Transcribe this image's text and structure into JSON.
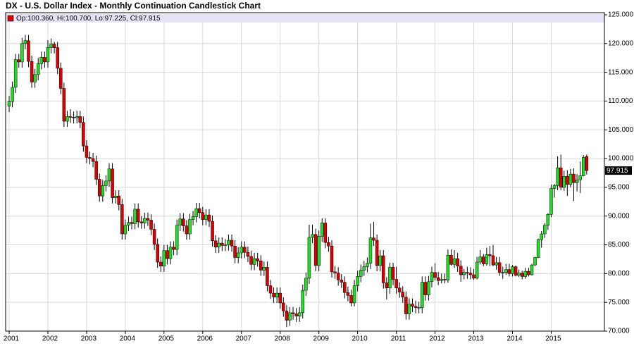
{
  "chart_data": {
    "type": "candlestick",
    "title": "DX - U.S. Dollar Index - Monthly Continuation Candlestick Chart",
    "legend_text": "Op:100.360, Hi:100.700, Lo:97.225, Cl:97.915",
    "categories": [
      "2001",
      null,
      null,
      null,
      null,
      null,
      null,
      null,
      null,
      null,
      null,
      null,
      "2002",
      null,
      null,
      null,
      null,
      null,
      null,
      null,
      null,
      null,
      null,
      null,
      "2003",
      null,
      null,
      null,
      null,
      null,
      null,
      null,
      null,
      null,
      null,
      null,
      "2004",
      null,
      null,
      null,
      null,
      null,
      null,
      null,
      null,
      null,
      null,
      null,
      "2005",
      null,
      null,
      null,
      null,
      null,
      null,
      null,
      null,
      null,
      null,
      null,
      "2006",
      null,
      null,
      null,
      null,
      null,
      null,
      null,
      null,
      null,
      null,
      null,
      "2007",
      null,
      null,
      null,
      null,
      null,
      null,
      null,
      null,
      null,
      null,
      null,
      "2008",
      null,
      null,
      null,
      null,
      null,
      null,
      null,
      null,
      null,
      null,
      null,
      "2009",
      null,
      null,
      null,
      null,
      null,
      null,
      null,
      null,
      null,
      null,
      null,
      "2010",
      null,
      null,
      null,
      null,
      null,
      null,
      null,
      null,
      null,
      null,
      null,
      "2011",
      null,
      null,
      null,
      null,
      null,
      null,
      null,
      null,
      null,
      null,
      null,
      "2012",
      null,
      null,
      null,
      null,
      null,
      null,
      null,
      null,
      null,
      null,
      null,
      "2013",
      null,
      null,
      null,
      null,
      null,
      null,
      null,
      null,
      null,
      null,
      null,
      "2014",
      null,
      null,
      null,
      null,
      null,
      null,
      null,
      null,
      null,
      null,
      null,
      "2015",
      null,
      null,
      null,
      null,
      null,
      null,
      null,
      null,
      null,
      null,
      null
    ],
    "open": [
      109.1,
      109.9,
      112.4,
      117.2,
      116.8,
      120.0,
      120.5,
      116.9,
      113.3,
      114.6,
      116.5,
      117.6,
      116.8,
      119.3,
      119.9,
      119.3,
      115.7,
      112.2,
      106.5,
      107.3,
      107.2,
      107.1,
      107.3,
      106.3,
      102.2,
      100.2,
      100.0,
      99.5,
      96.4,
      93.5,
      95.3,
      96.1,
      98.2,
      93.2,
      93.5,
      92.0,
      86.9,
      88.4,
      88.9,
      88.7,
      91.2,
      89.0,
      88.8,
      89.6,
      89.3,
      87.7,
      85.1,
      82.0,
      81.3,
      84.0,
      82.6,
      84.6,
      84.2,
      88.4,
      89.5,
      88.3,
      86.9,
      89.4,
      89.9,
      91.3,
      90.6,
      89.4,
      90.2,
      89.1,
      85.7,
      84.6,
      85.3,
      84.9,
      85.0,
      85.8,
      84.8,
      82.8,
      83.6,
      84.6,
      83.7,
      83.0,
      81.6,
      82.6,
      82.2,
      80.6,
      81.1,
      77.9,
      76.6,
      75.9,
      76.6,
      74.9,
      73.5,
      71.9,
      73.2,
      73.0,
      72.6,
      73.2,
      77.1,
      79.2,
      86.3,
      86.8,
      81.4,
      86.5,
      88.8,
      85.4,
      84.8,
      80.3,
      80.1,
      78.9,
      78.5,
      76.7,
      76.2,
      74.9,
      77.9,
      79.5,
      80.6,
      81.2,
      81.8,
      86.2,
      85.8,
      81.4,
      83.1,
      78.4,
      77.5,
      81.1,
      79.0,
      77.5,
      76.8,
      75.9,
      73.0,
      74.7,
      74.3,
      74.1,
      74.1,
      78.5,
      76.3,
      78.6,
      80.2,
      79.3,
      78.8,
      79.0,
      78.9,
      83.2,
      81.6,
      82.6,
      81.3,
      79.8,
      80.2,
      80.1,
      79.8,
      79.2,
      82.0,
      82.9,
      81.7,
      83.3,
      83.1,
      81.5,
      81.9,
      80.2,
      80.2,
      80.7,
      80.0,
      81.2,
      79.7,
      80.1,
      79.5,
      80.4,
      79.8,
      81.5,
      82.8,
      85.9,
      86.9,
      88.4,
      90.3,
      94.8,
      95.3,
      98.4,
      95.0,
      96.9,
      95.5,
      97.3,
      95.8,
      96.3,
      97.0,
      100.36
    ],
    "high": [
      110.9,
      113.4,
      118.2,
      118.2,
      121.0,
      121.5,
      121.5,
      117.9,
      115.6,
      117.5,
      118.6,
      118.6,
      120.6,
      120.9,
      120.3,
      120.3,
      116.7,
      113.2,
      108.3,
      108.6,
      108.2,
      108.3,
      108.3,
      107.3,
      103.2,
      101.2,
      101.0,
      100.5,
      97.4,
      96.3,
      97.1,
      99.2,
      99.2,
      94.5,
      94.5,
      93.0,
      89.4,
      89.9,
      89.9,
      92.2,
      92.2,
      90.0,
      90.6,
      90.6,
      90.3,
      88.7,
      86.1,
      83.0,
      85.0,
      85.0,
      85.6,
      85.6,
      89.4,
      90.5,
      90.5,
      89.3,
      90.4,
      90.9,
      92.3,
      92.3,
      91.6,
      91.2,
      91.2,
      90.1,
      86.7,
      86.3,
      86.3,
      86.0,
      86.8,
      86.8,
      85.8,
      84.6,
      85.6,
      85.6,
      84.7,
      84.0,
      83.6,
      83.6,
      83.2,
      82.1,
      82.1,
      78.9,
      77.6,
      77.6,
      77.6,
      75.9,
      74.5,
      74.2,
      74.2,
      74.0,
      74.2,
      78.1,
      80.2,
      88.5,
      88.5,
      87.8,
      87.5,
      89.6,
      89.6,
      86.4,
      85.8,
      81.3,
      81.1,
      79.9,
      79.5,
      77.7,
      77.2,
      78.9,
      80.5,
      81.6,
      82.2,
      82.8,
      88.7,
      89.0,
      86.8,
      84.1,
      84.1,
      79.4,
      81.9,
      81.9,
      81.2,
      78.5,
      77.8,
      76.9,
      75.7,
      75.7,
      75.3,
      75.1,
      79.5,
      79.5,
      79.6,
      81.2,
      81.8,
      80.3,
      80.0,
      80.0,
      84.2,
      84.2,
      84.1,
      83.6,
      82.3,
      80.8,
      81.2,
      81.1,
      80.8,
      82.9,
      84.1,
      83.4,
      84.5,
      84.8,
      85.0,
      82.9,
      82.9,
      81.2,
      81.7,
      81.7,
      81.5,
      81.4,
      80.7,
      80.5,
      81.0,
      81.0,
      81.7,
      82.9,
      86.1,
      87.4,
      88.8,
      90.5,
      95.5,
      95.6,
      100.4,
      100.7,
      97.9,
      98.0,
      98.2,
      98.3,
      97.3,
      99.5,
      100.6,
      100.7
    ],
    "low": [
      108.1,
      108.9,
      111.4,
      115.8,
      115.8,
      119.0,
      115.9,
      112.3,
      112.3,
      113.6,
      115.5,
      115.8,
      115.8,
      118.3,
      118.3,
      114.7,
      111.2,
      105.5,
      105.5,
      106.2,
      106.1,
      106.1,
      105.3,
      101.2,
      99.2,
      99.0,
      98.5,
      95.4,
      92.5,
      92.5,
      94.3,
      95.1,
      92.2,
      92.2,
      91.0,
      85.9,
      85.9,
      87.4,
      87.7,
      87.7,
      88.0,
      87.8,
      87.8,
      88.3,
      86.7,
      84.1,
      81.0,
      80.3,
      80.3,
      81.6,
      81.6,
      83.2,
      83.2,
      87.4,
      87.3,
      85.9,
      85.9,
      88.4,
      88.9,
      89.6,
      88.4,
      88.4,
      88.1,
      84.7,
      83.6,
      83.6,
      83.9,
      83.9,
      84.0,
      83.8,
      81.8,
      81.8,
      82.6,
      82.7,
      82.0,
      80.6,
      80.6,
      81.2,
      79.6,
      79.6,
      76.9,
      75.6,
      74.9,
      74.9,
      73.9,
      72.5,
      70.7,
      70.9,
      72.0,
      71.6,
      71.6,
      72.2,
      76.1,
      78.2,
      85.3,
      80.4,
      80.4,
      85.5,
      84.4,
      83.8,
      79.3,
      79.1,
      77.9,
      77.5,
      75.7,
      75.2,
      74.3,
      74.3,
      76.9,
      78.5,
      79.6,
      80.2,
      80.8,
      84.8,
      80.4,
      80.4,
      77.4,
      75.5,
      76.5,
      78.0,
      76.5,
      75.8,
      74.9,
      72.0,
      72.0,
      73.3,
      73.1,
      73.1,
      73.1,
      75.3,
      75.3,
      77.6,
      78.8,
      78.0,
      78.3,
      78.3,
      78.4,
      81.4,
      81.0,
      80.3,
      78.6,
      79.0,
      79.1,
      79.0,
      78.9,
      79.0,
      81.6,
      81.3,
      81.4,
      81.3,
      81.3,
      80.7,
      79.6,
      79.1,
      79.8,
      79.5,
      79.5,
      79.5,
      79.4,
      79.0,
      79.1,
      79.5,
      79.7,
      81.3,
      82.7,
      84.5,
      86.2,
      87.6,
      89.8,
      93.2,
      94.5,
      94.5,
      94.4,
      93.5,
      95.0,
      92.6,
      94.3,
      94.0,
      96.9,
      97.225
    ],
    "close": [
      109.9,
      112.4,
      117.2,
      116.8,
      120.0,
      120.5,
      116.9,
      113.3,
      114.6,
      116.5,
      117.6,
      116.8,
      119.3,
      119.9,
      119.3,
      115.7,
      112.2,
      106.5,
      107.3,
      107.2,
      107.1,
      107.3,
      106.3,
      102.2,
      100.2,
      100.0,
      99.5,
      96.4,
      93.5,
      95.3,
      96.1,
      98.2,
      93.2,
      93.5,
      92.0,
      86.9,
      88.4,
      88.9,
      88.7,
      91.2,
      89.0,
      88.8,
      89.6,
      89.3,
      87.7,
      85.1,
      82.0,
      81.3,
      84.0,
      82.6,
      84.6,
      84.2,
      88.4,
      89.5,
      88.3,
      86.9,
      89.4,
      89.9,
      91.3,
      90.6,
      89.4,
      90.2,
      89.1,
      85.7,
      84.6,
      85.3,
      84.9,
      85.0,
      85.8,
      84.8,
      82.8,
      83.6,
      84.6,
      83.7,
      83.0,
      81.6,
      82.6,
      82.2,
      80.6,
      81.1,
      77.9,
      76.6,
      75.9,
      76.6,
      74.9,
      73.5,
      71.9,
      73.2,
      73.0,
      72.6,
      73.2,
      77.1,
      79.2,
      86.3,
      86.8,
      81.4,
      86.5,
      88.8,
      85.4,
      84.8,
      80.3,
      80.1,
      78.9,
      78.5,
      76.7,
      76.2,
      74.9,
      77.9,
      79.5,
      80.6,
      81.2,
      81.8,
      86.2,
      85.8,
      81.4,
      83.1,
      78.4,
      77.5,
      81.1,
      79.0,
      77.5,
      76.8,
      75.9,
      73.0,
      74.7,
      74.3,
      74.1,
      74.1,
      78.5,
      76.3,
      78.6,
      80.2,
      79.3,
      78.8,
      79.0,
      78.9,
      83.2,
      81.6,
      82.6,
      81.3,
      79.8,
      80.2,
      80.1,
      79.8,
      79.2,
      82.0,
      82.9,
      81.7,
      83.3,
      83.1,
      81.5,
      81.9,
      80.2,
      80.2,
      80.7,
      80.0,
      81.2,
      79.7,
      80.1,
      79.5,
      80.4,
      79.8,
      81.5,
      82.8,
      85.9,
      86.9,
      88.4,
      90.3,
      94.8,
      95.3,
      98.4,
      95.0,
      96.9,
      95.5,
      97.3,
      95.8,
      96.3,
      97.0,
      100.2,
      97.915
    ],
    "up_color": "#22dd22",
    "down_color": "#dd0000",
    "ylim": [
      70,
      125
    ],
    "yticks": [
      {
        "value": 70,
        "label": "70.000"
      },
      {
        "value": 75,
        "label": "75.000"
      },
      {
        "value": 80,
        "label": "80.000"
      },
      {
        "value": 85,
        "label": "85.000"
      },
      {
        "value": 90,
        "label": "90.000"
      },
      {
        "value": 95,
        "label": "95.000"
      },
      {
        "value": 100,
        "label": "100.000"
      },
      {
        "value": 105,
        "label": "105.000"
      },
      {
        "value": 110,
        "label": "110.000"
      },
      {
        "value": 115,
        "label": "115.000"
      },
      {
        "value": 120,
        "label": "120.000"
      },
      {
        "value": 125,
        "label": "125.000"
      }
    ],
    "last_price_label": {
      "value": 97.915,
      "label": "97.915"
    },
    "grid": true
  }
}
